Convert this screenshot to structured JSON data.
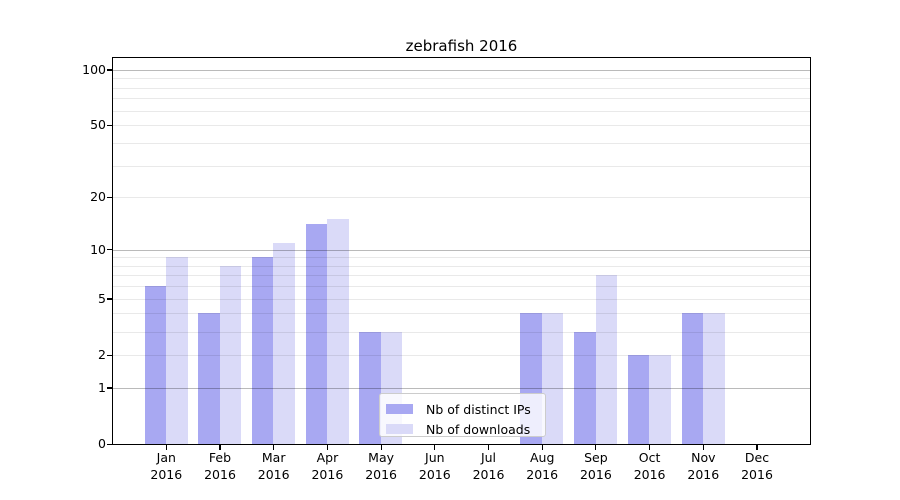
{
  "title": "zebrafish 2016",
  "chart_data": {
    "type": "bar",
    "title": "zebrafish 2016",
    "categories": [
      {
        "line1": "Jan",
        "line2": "2016"
      },
      {
        "line1": "Feb",
        "line2": "2016"
      },
      {
        "line1": "Mar",
        "line2": "2016"
      },
      {
        "line1": "Apr",
        "line2": "2016"
      },
      {
        "line1": "May",
        "line2": "2016"
      },
      {
        "line1": "Jun",
        "line2": "2016"
      },
      {
        "line1": "Jul",
        "line2": "2016"
      },
      {
        "line1": "Aug",
        "line2": "2016"
      },
      {
        "line1": "Sep",
        "line2": "2016"
      },
      {
        "line1": "Oct",
        "line2": "2016"
      },
      {
        "line1": "Nov",
        "line2": "2016"
      },
      {
        "line1": "Dec",
        "line2": "2016"
      }
    ],
    "series": [
      {
        "name": "Nb of distinct IPs",
        "color": "#a8a8f2",
        "values": [
          6,
          4,
          9,
          14,
          3,
          0,
          0,
          4,
          3,
          2,
          4,
          0
        ]
      },
      {
        "name": "Nb of downloads",
        "color": "#dadaf8",
        "values": [
          9,
          8,
          11,
          15,
          3,
          0,
          0,
          4,
          7,
          2,
          4,
          0
        ]
      }
    ],
    "xlabel": "",
    "ylabel": "",
    "y_axis": {
      "scale": "log10(1+x)",
      "ticks": [
        100,
        50,
        20,
        10,
        5,
        2,
        1,
        0
      ],
      "tick_labels": [
        "100",
        "50",
        "20",
        "10",
        "5",
        "2",
        "1",
        "0"
      ],
      "range": [
        0,
        117
      ]
    },
    "grid": {
      "major_lines": [
        1,
        10,
        100
      ],
      "minor_lines": [
        2,
        3,
        4,
        5,
        6,
        7,
        8,
        9,
        20,
        30,
        40,
        50,
        60,
        70,
        80,
        90
      ]
    },
    "legend_position": "lower-center"
  }
}
